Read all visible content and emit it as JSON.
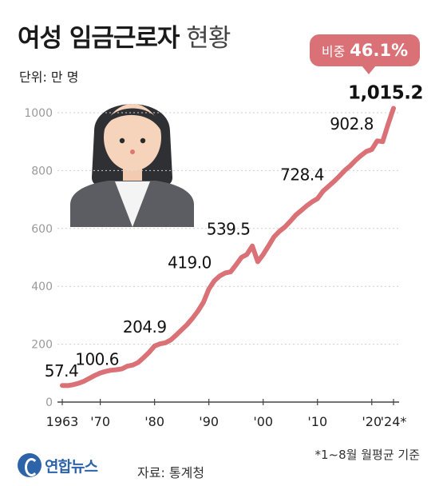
{
  "header": {
    "title_bold": "여성 임금근로자",
    "title_light": "현황",
    "unit": "단위: 만 명"
  },
  "badge": {
    "label": "비중",
    "value": "46.1%"
  },
  "footer": {
    "note": "*1~8월 월평균 기준",
    "source": "자료: 통계청",
    "logo": "연합뉴스"
  },
  "colors": {
    "line": "#d97176",
    "badge": "#d97176",
    "grid": "#cfcfcf",
    "logo": "#2d63a8"
  },
  "chart_data": {
    "type": "line",
    "title": "여성 임금근로자 현황",
    "ylabel": "단위: 만 명",
    "xlim": [
      1963,
      2024
    ],
    "ylim": [
      0,
      1050
    ],
    "yticks": [
      0,
      200,
      400,
      600,
      800,
      1000
    ],
    "xticks": [
      {
        "x": 1963,
        "label": "1963"
      },
      {
        "x": 1970,
        "label": "'70"
      },
      {
        "x": 1980,
        "label": "'80"
      },
      {
        "x": 1990,
        "label": "'90"
      },
      {
        "x": 2000,
        "label": "'00"
      },
      {
        "x": 2010,
        "label": "'10"
      },
      {
        "x": 2020,
        "label": "'20"
      },
      {
        "x": 2024,
        "label": "'24*"
      }
    ],
    "series": [
      {
        "x": [
          1963,
          1964,
          1965,
          1966,
          1967,
          1968,
          1969,
          1970,
          1971,
          1972,
          1973,
          1974,
          1975,
          1976,
          1977,
          1978,
          1979,
          1980,
          1981,
          1982,
          1983,
          1984,
          1985,
          1986,
          1987,
          1988,
          1989,
          1990,
          1991,
          1992,
          1993,
          1994,
          1995,
          1996,
          1997,
          1998,
          1999,
          2000,
          2001,
          2002,
          2003,
          2004,
          2005,
          2006,
          2007,
          2008,
          2009,
          2010,
          2011,
          2012,
          2013,
          2014,
          2015,
          2016,
          2017,
          2018,
          2019,
          2020,
          2021,
          2022,
          2023,
          2024
        ],
        "y": [
          57.4,
          57,
          60,
          65,
          72,
          82,
          92,
          100.6,
          106,
          110,
          112,
          115,
          124,
          128,
          137,
          154,
          172,
          194,
          201,
          204.9,
          215,
          232,
          250,
          268,
          290,
          315,
          345,
          391,
          419.0,
          436,
          446,
          450,
          474,
          500,
          510,
          539.5,
          485,
          510,
          540,
          571,
          590,
          605,
          625,
          646,
          662,
          678,
          692,
          703,
          728.4,
          745,
          762,
          780,
          800,
          816,
          835,
          852,
          866,
          873,
          902.8,
          900,
          960,
          1015.2
        ]
      }
    ],
    "annotations": [
      {
        "x": 1963,
        "y": 57.4,
        "label": "57.4"
      },
      {
        "x": 1970,
        "y": 100.6,
        "label": "100.6"
      },
      {
        "x": 1982,
        "y": 204.9,
        "label": "204.9"
      },
      {
        "x": 1991,
        "y": 419.0,
        "label": "419.0"
      },
      {
        "x": 1998,
        "y": 539.5,
        "label": "539.5"
      },
      {
        "x": 2011,
        "y": 728.4,
        "label": "728.4"
      },
      {
        "x": 2021,
        "y": 902.8,
        "label": "902.8"
      },
      {
        "x": 2024,
        "y": 1015.2,
        "label": "1,015.2"
      }
    ]
  }
}
